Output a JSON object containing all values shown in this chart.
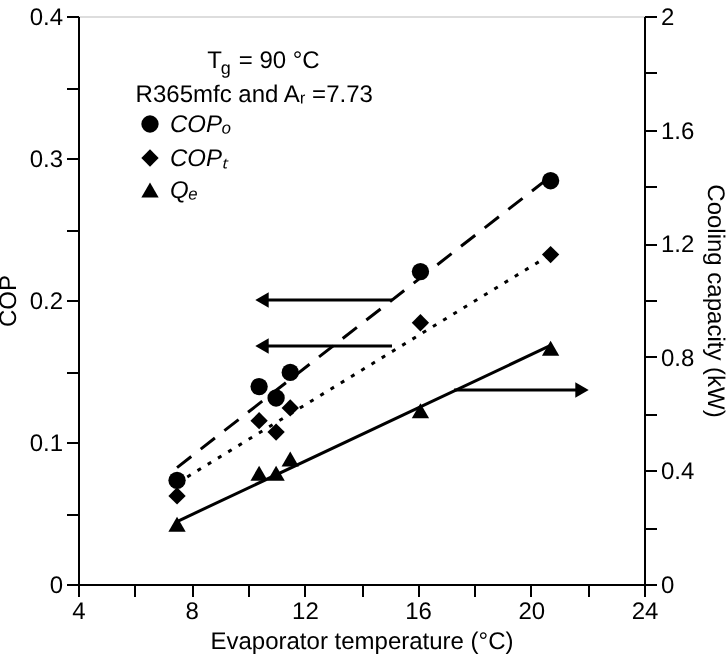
{
  "chart_data": {
    "type": "scatter",
    "xlabel": "Evaporator temperature (°C)",
    "ylabel": "COP",
    "y2label": "Cooling capacity (kW)",
    "annotations": [
      "T$_{g}$ = 90 °C",
      "R365mfc and Aᵣ =7.73"
    ],
    "xlim": [
      4,
      24
    ],
    "xticks": [
      4,
      {
        "value": 6,
        "label": null
      },
      8,
      {
        "value": 10,
        "label": null
      },
      12,
      {
        "value": 14,
        "label": null
      },
      16,
      {
        "value": 18,
        "label": null
      },
      20,
      {
        "value": 22,
        "label": null
      },
      24
    ],
    "ylim": [
      0,
      0.4
    ],
    "yticks": [
      0,
      {
        "value": 0.05,
        "label": null
      },
      0.1,
      {
        "value": 0.15,
        "label": null
      },
      0.2,
      {
        "value": 0.25,
        "label": null
      },
      0.3,
      {
        "value": 0.35,
        "label": null
      },
      0.4
    ],
    "y2lim": [
      0,
      2
    ],
    "y2ticks": [
      0,
      {
        "value": 0.2,
        "label": null
      },
      0.4,
      {
        "value": 0.6,
        "label": null
      },
      0.8,
      {
        "value": 1.0,
        "label": null
      },
      1.2,
      {
        "value": 1.4,
        "label": null
      },
      1.6,
      {
        "value": 1.8,
        "label": null
      },
      2
    ],
    "grid": false,
    "legend": "top left",
    "series": [
      {
        "name": "COPₒ",
        "color": "#000000",
        "marker": "circle",
        "x": [
          7.5,
          10.4,
          11.0,
          11.5,
          16.1,
          20.7
        ],
        "values": [
          0.073,
          0.139,
          0.131,
          0.149,
          0.22,
          0.284
        ]
      },
      {
        "name": "COPₜ",
        "color": "#000000",
        "marker": "diamond",
        "x": [
          7.5,
          10.4,
          11.0,
          11.5,
          16.1,
          20.7
        ],
        "values": [
          0.062,
          0.115,
          0.107,
          0.124,
          0.184,
          0.232
        ]
      },
      {
        "name": "Qₑ",
        "color": "#000000",
        "marker": "triangle",
        "axis": "y2",
        "x": [
          7.5,
          10.4,
          11.0,
          11.5,
          16.1,
          20.7
        ],
        "values": [
          0.21,
          0.39,
          0.39,
          0.44,
          0.61,
          0.83
        ]
      },
      {
        "type": "line",
        "color": "#000000",
        "line_style": "dashed",
        "marker": "none",
        "x": [
          7.5,
          20.7
        ],
        "values": [
          0.082,
          0.287
        ]
      },
      {
        "type": "line",
        "color": "#000000",
        "line_style": "dotted",
        "marker": "none",
        "x": [
          7.5,
          20.7
        ],
        "values": [
          0.071,
          0.232
        ]
      },
      {
        "type": "line",
        "color": "#000000",
        "line_style": "solid",
        "marker": "none",
        "axis": "y2",
        "x": [
          7.5,
          20.7
        ],
        "values": [
          0.22,
          0.84
        ]
      }
    ]
  }
}
